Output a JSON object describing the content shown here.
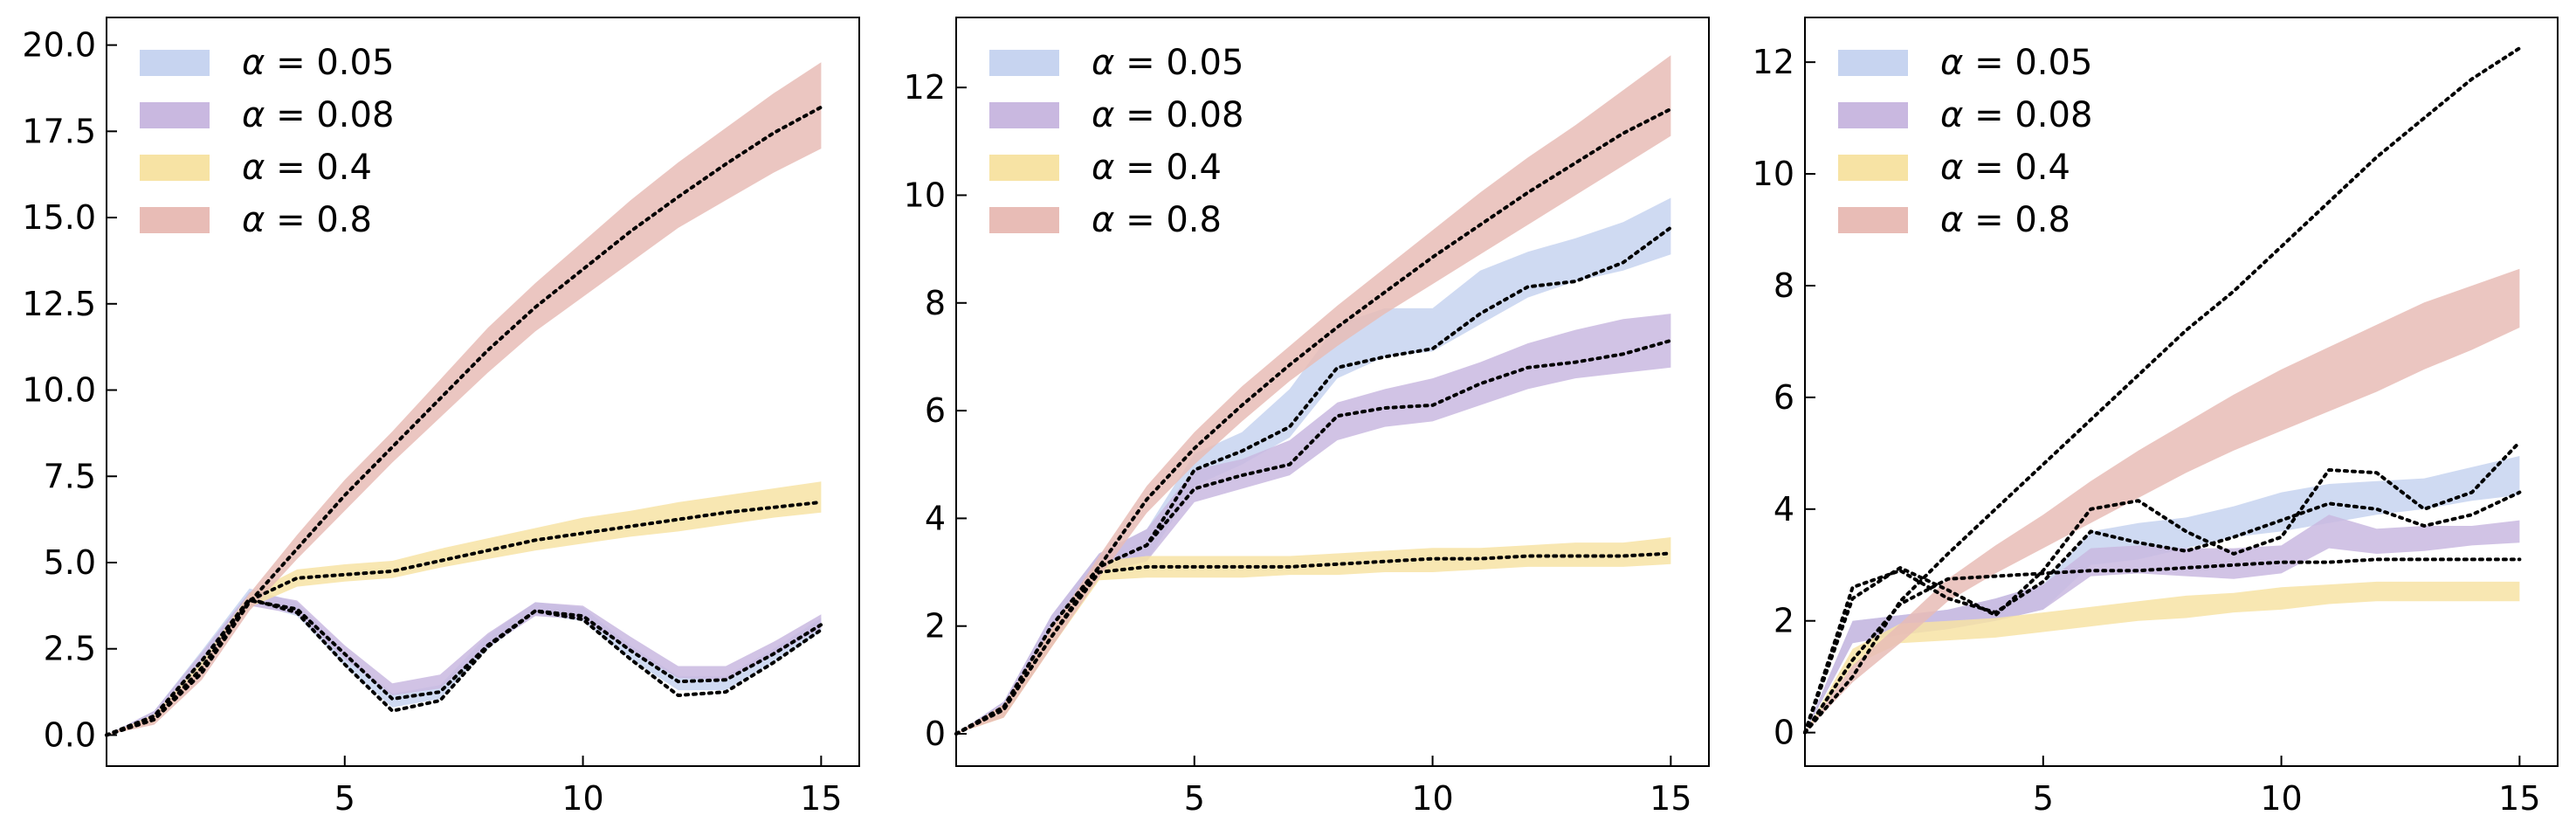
{
  "legend_symbol": "α",
  "chart_data": [
    {
      "type": "area",
      "title": "",
      "xlabel": "",
      "ylabel": "",
      "xlim": [
        0,
        15.8
      ],
      "ylim": [
        -0.9,
        20.8
      ],
      "xticks": [
        5,
        10,
        15
      ],
      "yticks": [
        0.0,
        2.5,
        5.0,
        7.5,
        10.0,
        12.5,
        15.0,
        17.5,
        20.0
      ],
      "ytick_labels": [
        "0.0",
        "2.5",
        "5.0",
        "7.5",
        "10.0",
        "12.5",
        "15.0",
        "17.5",
        "20.0"
      ],
      "grid": false,
      "legend_position": "top-left",
      "series": [
        {
          "label_value": "0.05",
          "color": "#c7d4f0",
          "x": [
            0,
            1,
            2,
            3,
            4,
            5,
            6,
            7,
            8,
            9,
            10,
            11,
            12,
            13,
            14,
            15
          ],
          "lower": [
            0,
            0.45,
            2.05,
            3.85,
            3.45,
            2.0,
            0.8,
            1.05,
            2.5,
            3.5,
            3.3,
            2.2,
            1.3,
            1.3,
            2.1,
            3.0
          ],
          "upper": [
            0,
            0.7,
            2.45,
            4.25,
            3.85,
            2.4,
            1.2,
            1.45,
            2.9,
            3.85,
            3.7,
            2.6,
            1.7,
            1.7,
            2.5,
            3.4
          ],
          "mean": [
            0,
            0.55,
            2.15,
            3.95,
            3.55,
            2.05,
            0.7,
            1.0,
            2.55,
            3.6,
            3.35,
            2.2,
            1.15,
            1.25,
            2.1,
            3.05
          ]
        },
        {
          "label_value": "0.08",
          "color": "#c9b8e0",
          "x": [
            0,
            1,
            2,
            3,
            4,
            5,
            6,
            7,
            8,
            9,
            10,
            11,
            12,
            13,
            14,
            15
          ],
          "lower": [
            0,
            0.45,
            2.0,
            3.75,
            3.5,
            2.2,
            1.15,
            1.35,
            2.55,
            3.45,
            3.35,
            2.45,
            1.65,
            1.6,
            2.3,
            3.1
          ],
          "upper": [
            0,
            0.7,
            2.4,
            4.15,
            3.9,
            2.6,
            1.5,
            1.75,
            2.95,
            3.85,
            3.75,
            2.85,
            2.0,
            2.0,
            2.7,
            3.5
          ],
          "mean": [
            0,
            0.55,
            2.15,
            3.9,
            3.65,
            2.35,
            1.05,
            1.25,
            2.6,
            3.6,
            3.45,
            2.45,
            1.55,
            1.6,
            2.35,
            3.2
          ]
        },
        {
          "label_value": "0.4",
          "color": "#f7e3a4",
          "x": [
            0,
            1,
            2,
            3,
            4,
            5,
            6,
            7,
            8,
            9,
            10,
            11,
            12,
            13,
            14,
            15
          ],
          "lower": [
            0,
            0.35,
            1.75,
            3.7,
            4.3,
            4.45,
            4.55,
            4.85,
            5.1,
            5.35,
            5.55,
            5.75,
            5.9,
            6.1,
            6.3,
            6.45
          ],
          "upper": [
            0,
            0.6,
            2.15,
            4.1,
            4.8,
            4.95,
            5.05,
            5.4,
            5.7,
            6.0,
            6.3,
            6.5,
            6.75,
            6.95,
            7.15,
            7.35
          ],
          "mean": [
            0,
            0.45,
            1.95,
            3.9,
            4.55,
            4.65,
            4.75,
            5.05,
            5.35,
            5.65,
            5.85,
            6.05,
            6.25,
            6.45,
            6.6,
            6.75
          ]
        },
        {
          "label_value": "0.8",
          "color": "#e8bcb6",
          "x": [
            0,
            1,
            2,
            3,
            4,
            5,
            6,
            7,
            8,
            9,
            10,
            11,
            12,
            13,
            14,
            15
          ],
          "lower": [
            0,
            0.3,
            1.6,
            3.6,
            5.1,
            6.5,
            7.9,
            9.2,
            10.5,
            11.7,
            12.7,
            13.7,
            14.7,
            15.5,
            16.3,
            17.0
          ],
          "upper": [
            0,
            0.55,
            2.0,
            4.1,
            5.8,
            7.4,
            8.8,
            10.3,
            11.8,
            13.1,
            14.3,
            15.5,
            16.6,
            17.6,
            18.6,
            19.5
          ],
          "mean": [
            0,
            0.45,
            1.8,
            3.85,
            5.4,
            6.95,
            8.35,
            9.75,
            11.15,
            12.4,
            13.5,
            14.6,
            15.6,
            16.55,
            17.45,
            18.2
          ]
        }
      ]
    },
    {
      "type": "area",
      "title": "",
      "xlabel": "",
      "ylabel": "",
      "xlim": [
        0,
        15.8
      ],
      "ylim": [
        -0.6,
        13.3
      ],
      "xticks": [
        5,
        10,
        15
      ],
      "yticks": [
        0,
        2,
        4,
        6,
        8,
        10,
        12
      ],
      "ytick_labels": [
        "0",
        "2",
        "4",
        "6",
        "8",
        "10",
        "12"
      ],
      "grid": false,
      "legend_position": "top-left",
      "series": [
        {
          "label_value": "0.05",
          "color": "#c7d4f0",
          "x": [
            0,
            1,
            2,
            3,
            4,
            5,
            6,
            7,
            8,
            9,
            10,
            11,
            12,
            13,
            14,
            15
          ],
          "lower": [
            0,
            0.35,
            1.8,
            3.0,
            3.2,
            4.6,
            5.0,
            5.5,
            6.6,
            7.0,
            7.1,
            7.6,
            8.1,
            8.4,
            8.6,
            8.9
          ],
          "upper": [
            0,
            0.6,
            2.2,
            3.35,
            3.8,
            5.2,
            5.6,
            6.4,
            7.6,
            7.9,
            7.9,
            8.6,
            8.95,
            9.2,
            9.5,
            9.95
          ],
          "mean": [
            0,
            0.5,
            2.0,
            3.1,
            3.5,
            4.9,
            5.25,
            5.7,
            6.8,
            7.0,
            7.15,
            7.8,
            8.3,
            8.4,
            8.75,
            9.4
          ]
        },
        {
          "label_value": "0.08",
          "color": "#c9b8e0",
          "x": [
            0,
            1,
            2,
            3,
            4,
            5,
            6,
            7,
            8,
            9,
            10,
            11,
            12,
            13,
            14,
            15
          ],
          "lower": [
            0,
            0.35,
            1.8,
            3.0,
            3.2,
            4.3,
            4.55,
            4.8,
            5.45,
            5.7,
            5.8,
            6.1,
            6.4,
            6.6,
            6.7,
            6.8
          ],
          "upper": [
            0,
            0.6,
            2.2,
            3.35,
            3.8,
            4.9,
            5.1,
            5.45,
            6.15,
            6.4,
            6.6,
            6.9,
            7.25,
            7.5,
            7.7,
            7.8
          ],
          "mean": [
            0,
            0.5,
            2.0,
            3.1,
            3.5,
            4.55,
            4.8,
            5.0,
            5.9,
            6.05,
            6.1,
            6.5,
            6.8,
            6.9,
            7.05,
            7.3
          ]
        },
        {
          "label_value": "0.4",
          "color": "#f7e3a4",
          "x": [
            0,
            1,
            2,
            3,
            4,
            5,
            6,
            7,
            8,
            9,
            10,
            11,
            12,
            13,
            14,
            15
          ],
          "lower": [
            0,
            0.3,
            1.6,
            2.85,
            2.9,
            2.9,
            2.9,
            2.95,
            2.95,
            3.0,
            3.0,
            3.05,
            3.1,
            3.1,
            3.1,
            3.15
          ],
          "upper": [
            0,
            0.55,
            1.95,
            3.2,
            3.3,
            3.3,
            3.3,
            3.3,
            3.35,
            3.4,
            3.45,
            3.45,
            3.5,
            3.55,
            3.55,
            3.65
          ],
          "mean": [
            0,
            0.45,
            1.8,
            3.0,
            3.1,
            3.1,
            3.1,
            3.1,
            3.15,
            3.2,
            3.25,
            3.25,
            3.3,
            3.3,
            3.3,
            3.35
          ]
        },
        {
          "label_value": "0.8",
          "color": "#e8bcb6",
          "x": [
            0,
            1,
            2,
            3,
            4,
            5,
            6,
            7,
            8,
            9,
            10,
            11,
            12,
            13,
            14,
            15
          ],
          "lower": [
            0,
            0.3,
            1.6,
            2.9,
            4.1,
            5.0,
            5.8,
            6.55,
            7.2,
            7.8,
            8.35,
            8.9,
            9.45,
            10.0,
            10.55,
            11.1
          ],
          "upper": [
            0,
            0.55,
            1.95,
            3.3,
            4.6,
            5.6,
            6.45,
            7.2,
            7.95,
            8.65,
            9.35,
            10.05,
            10.7,
            11.3,
            11.95,
            12.6
          ],
          "mean": [
            0,
            0.45,
            1.8,
            3.1,
            4.35,
            5.3,
            6.1,
            6.85,
            7.55,
            8.2,
            8.85,
            9.45,
            10.05,
            10.6,
            11.15,
            11.6
          ]
        }
      ]
    },
    {
      "type": "area",
      "title": "",
      "xlabel": "",
      "ylabel": "",
      "xlim": [
        0,
        15.8
      ],
      "ylim": [
        -0.6,
        12.8
      ],
      "xticks": [
        5,
        10,
        15
      ],
      "yticks": [
        0,
        2,
        4,
        6,
        8,
        10,
        12
      ],
      "ytick_labels": [
        "0",
        "2",
        "4",
        "6",
        "8",
        "10",
        "12"
      ],
      "grid": false,
      "legend_position": "top-left",
      "series": [
        {
          "label_value": "0.05",
          "color": "#c7d4f0",
          "x": [
            0,
            1,
            2,
            3,
            4,
            5,
            6,
            7,
            8,
            9,
            10,
            11,
            12,
            13,
            14,
            15
          ],
          "lower": [
            0,
            1.6,
            1.75,
            1.85,
            2.0,
            2.2,
            3.0,
            3.1,
            3.3,
            3.5,
            3.6,
            3.75,
            3.9,
            4.0,
            4.15,
            4.25
          ],
          "upper": [
            0,
            2.0,
            2.1,
            2.2,
            2.4,
            2.65,
            3.6,
            3.75,
            3.85,
            4.05,
            4.3,
            4.45,
            4.5,
            4.55,
            4.75,
            4.95
          ],
          "mean": [
            0,
            2.6,
            2.9,
            2.4,
            2.15,
            2.7,
            3.6,
            3.4,
            3.25,
            3.5,
            3.8,
            4.1,
            4.0,
            3.7,
            3.9,
            4.3
          ]
        },
        {
          "label_value": "0.08",
          "color": "#c9b8e0",
          "x": [
            0,
            1,
            2,
            3,
            4,
            5,
            6,
            7,
            8,
            9,
            10,
            11,
            12,
            13,
            14,
            15
          ],
          "lower": [
            0,
            1.6,
            1.75,
            1.85,
            2.0,
            2.2,
            2.8,
            2.85,
            2.8,
            2.75,
            2.85,
            3.3,
            3.2,
            3.25,
            3.35,
            3.4
          ],
          "upper": [
            0,
            2.0,
            2.1,
            2.2,
            2.4,
            2.65,
            3.3,
            3.35,
            3.3,
            3.3,
            3.35,
            3.9,
            3.65,
            3.7,
            3.7,
            3.8
          ],
          "mean": [
            0,
            2.4,
            2.95,
            2.55,
            2.1,
            2.9,
            4.0,
            4.15,
            3.6,
            3.2,
            3.5,
            4.7,
            4.65,
            4.0,
            4.3,
            5.2
          ]
        },
        {
          "label_value": "0.4",
          "color": "#f7e3a4",
          "x": [
            0,
            1,
            2,
            3,
            4,
            5,
            6,
            7,
            8,
            9,
            10,
            11,
            12,
            13,
            14,
            15
          ],
          "lower": [
            0,
            1.2,
            1.6,
            1.65,
            1.7,
            1.8,
            1.9,
            2.0,
            2.05,
            2.15,
            2.2,
            2.3,
            2.35,
            2.35,
            2.35,
            2.35
          ],
          "upper": [
            0,
            1.5,
            1.95,
            2.0,
            2.05,
            2.15,
            2.25,
            2.35,
            2.45,
            2.5,
            2.6,
            2.65,
            2.7,
            2.7,
            2.7,
            2.7
          ],
          "mean": [
            0,
            1.3,
            2.3,
            2.75,
            2.8,
            2.85,
            2.9,
            2.9,
            2.95,
            3.0,
            3.05,
            3.05,
            3.1,
            3.1,
            3.1,
            3.1
          ]
        },
        {
          "label_value": "0.8",
          "color": "#e8bcb6",
          "x": [
            0,
            1,
            2,
            3,
            4,
            5,
            6,
            7,
            8,
            9,
            10,
            11,
            12,
            13,
            14,
            15
          ],
          "lower": [
            0,
            0.9,
            1.6,
            2.35,
            2.85,
            3.3,
            3.75,
            4.2,
            4.65,
            5.05,
            5.4,
            5.75,
            6.1,
            6.5,
            6.85,
            7.25
          ],
          "upper": [
            0,
            1.2,
            1.95,
            2.75,
            3.35,
            3.9,
            4.5,
            5.05,
            5.55,
            6.05,
            6.5,
            6.9,
            7.3,
            7.7,
            8.0,
            8.3
          ],
          "mean": [
            0,
            1.0,
            2.35,
            3.2,
            4.0,
            4.8,
            5.6,
            6.4,
            7.2,
            7.9,
            8.7,
            9.5,
            10.3,
            11.0,
            11.7,
            12.25
          ]
        }
      ]
    }
  ]
}
